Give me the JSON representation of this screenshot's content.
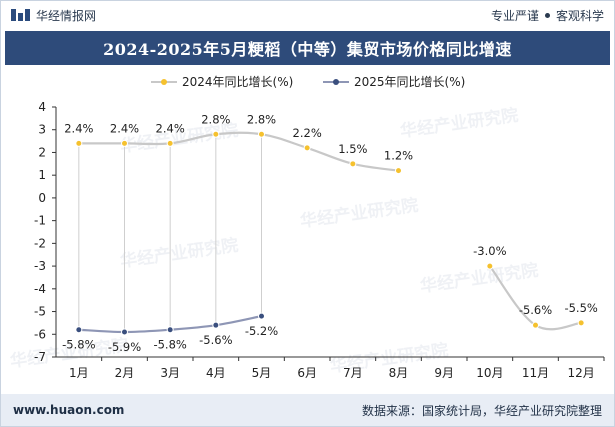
{
  "header": {
    "brand_name": "华经情报网",
    "tagline_left": "专业严谨",
    "tagline_right": "客观科学"
  },
  "footer": {
    "url": "www.huaon.com",
    "source": "数据来源：国家统计局，华经产业研究院整理"
  },
  "watermark": "华经产业研究院",
  "colors": {
    "title_bg": "#2e4b7a",
    "series_2024_line": "#c8c8c8",
    "series_2024_marker": "#f5c12e",
    "series_2025_line": "#8e96b5",
    "series_2025_marker": "#3a4f7e",
    "footer_bg": "#e8edf5"
  },
  "chart_data": {
    "type": "line",
    "title": "2024-2025年5月粳稻（中等）集贸市场价格同比增速",
    "categories": [
      "1月",
      "2月",
      "3月",
      "4月",
      "5月",
      "6月",
      "7月",
      "8月",
      "9月",
      "10月",
      "11月",
      "12月"
    ],
    "ylim": [
      -7,
      4
    ],
    "yticks": [
      4,
      3,
      2,
      1,
      0,
      -1,
      -2,
      -3,
      -4,
      -5,
      -6,
      -7
    ],
    "ytick_labels": [
      "4",
      "3",
      "2",
      "1",
      "0",
      "-1",
      "-2",
      "-3",
      "-4",
      "-5",
      "-6",
      "-7"
    ],
    "grid": false,
    "legend_position": "top",
    "series": [
      {
        "name": "2024年同比增长(%)",
        "values": [
          2.4,
          2.4,
          2.4,
          2.8,
          2.8,
          2.2,
          1.5,
          1.2,
          null,
          -3.0,
          -5.6,
          -5.5
        ],
        "labels": [
          "2.4%",
          "2.4%",
          "2.4%",
          "2.8%",
          "2.8%",
          "2.2%",
          "1.5%",
          "1.2%",
          "",
          "-3.0%",
          "-5.6%",
          "-5.5%"
        ]
      },
      {
        "name": "2025年同比增长(%)",
        "values": [
          -5.8,
          -5.9,
          -5.8,
          -5.6,
          -5.2,
          null,
          null,
          null,
          null,
          null,
          null,
          null
        ],
        "labels": [
          "-5.8%",
          "-5.9%",
          "-5.8%",
          "-5.6%",
          "-5.2%",
          "",
          "",
          "",
          "",
          "",
          "",
          ""
        ]
      }
    ]
  }
}
